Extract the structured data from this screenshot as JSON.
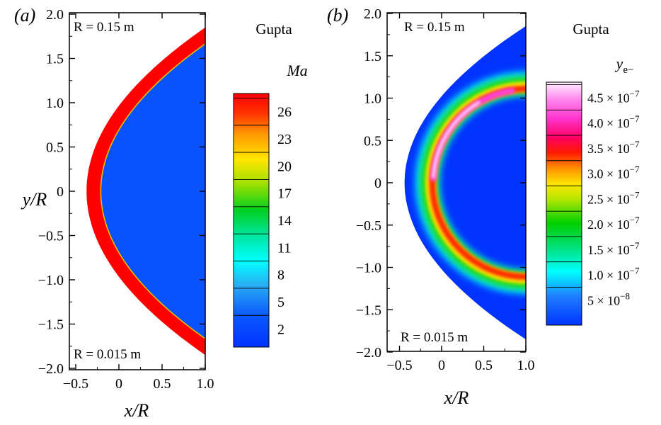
{
  "chart_data": [
    {
      "panel_label": "(a)",
      "type": "heatmap",
      "method": "Gupta",
      "xlabel": "x/R",
      "ylabel": "y/R",
      "xlim": [
        -0.5,
        1.0
      ],
      "ylim": [
        -2.0,
        2.0
      ],
      "x_ticks": [
        "−0.5",
        "0",
        "0.5",
        "1.0"
      ],
      "y_ticks": [
        "2.0",
        "1.5",
        "1.0",
        "0.5",
        "0",
        "−0.5",
        "−1.0",
        "−1.5",
        "−2.0"
      ],
      "annotations": {
        "top": "R = 0.15 m",
        "bottom": "R = 0.015 m"
      },
      "colorbar": {
        "title": "Ma",
        "range": [
          0,
          28
        ],
        "levels": [
          2,
          5,
          8,
          11,
          14,
          17,
          20,
          23,
          26
        ],
        "tick_labels": [
          "26",
          "23",
          "20",
          "17",
          "14",
          "11",
          "8",
          "5",
          "2"
        ]
      },
      "field_values": {
        "freestream_region": 27,
        "shock_layer": 1
      }
    },
    {
      "panel_label": "(b)",
      "type": "heatmap",
      "method": "Gupta",
      "xlabel": "x/R",
      "ylabel": "",
      "xlim": [
        -0.5,
        1.0
      ],
      "ylim": [
        -2.0,
        2.0
      ],
      "x_ticks": [
        "−0.5",
        "0",
        "0.5",
        "1.0"
      ],
      "y_ticks": [
        "2.0",
        "1.5",
        "1.0",
        "0.5",
        "0",
        "−0.5",
        "−1.0",
        "−1.5",
        "−2.0"
      ],
      "annotations": {
        "top": "R = 0.15 m",
        "bottom": "R = 0.015 m"
      },
      "colorbar": {
        "title_base": "y",
        "title_sub": "e−",
        "range": [
          0,
          4.8e-07
        ],
        "tick_labels": [
          {
            "mant": "4.5 × 10",
            "exp": "−7"
          },
          {
            "mant": "4.0 × 10",
            "exp": "−7"
          },
          {
            "mant": "3.5 × 10",
            "exp": "−7"
          },
          {
            "mant": "3.0 × 10",
            "exp": "−7"
          },
          {
            "mant": "2.5 × 10",
            "exp": "−7"
          },
          {
            "mant": "2.0 × 10",
            "exp": "−7"
          },
          {
            "mant": "1.5 × 10",
            "exp": "−7"
          },
          {
            "mant": "1.0 × 10",
            "exp": "−7"
          },
          {
            "mant": "5 × 10",
            "exp": "−8"
          }
        ],
        "tick_values": [
          4.5e-07,
          4e-07,
          3.5e-07,
          3e-07,
          2.5e-07,
          2e-07,
          1.5e-07,
          1e-07,
          5e-08
        ]
      },
      "field_values": {
        "stagnation_peak": 4.7e-07,
        "freestream": 0
      }
    }
  ]
}
